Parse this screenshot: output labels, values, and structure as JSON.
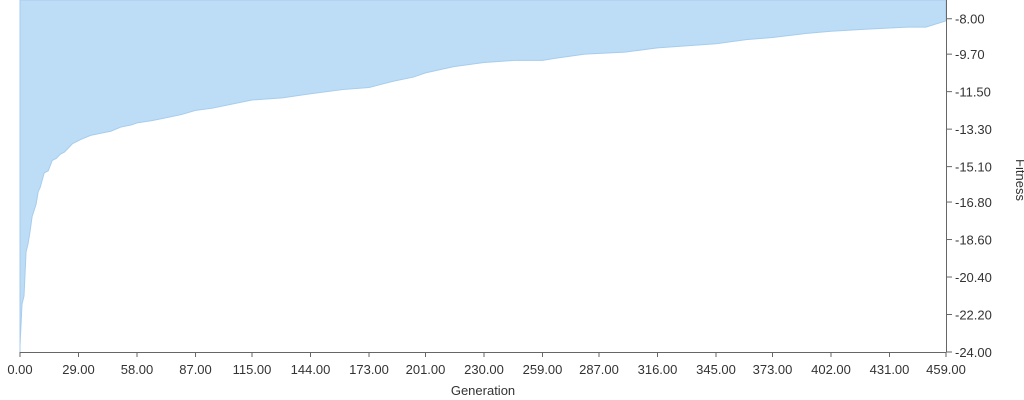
{
  "chart_data": {
    "type": "area",
    "xlabel": "Generation",
    "ylabel": "Fitness",
    "xlim": [
      0,
      459
    ],
    "ylim": [
      -24,
      -7.1
    ],
    "x_ticks": [
      "0.00",
      "29.00",
      "58.00",
      "87.00",
      "115.00",
      "144.00",
      "173.00",
      "201.00",
      "230.00",
      "259.00",
      "287.00",
      "316.00",
      "345.00",
      "373.00",
      "402.00",
      "431.00",
      "459.00"
    ],
    "y_ticks": [
      "-8.00",
      "-9.70",
      "-11.50",
      "-13.30",
      "-15.10",
      "-16.80",
      "-18.60",
      "-20.40",
      "-22.20",
      "-24.00"
    ],
    "y_axis_position": "right",
    "grid": false,
    "fill_color": "#bddcf5",
    "line_color": "#a6cdee",
    "series": [
      {
        "values_x": [
          0,
          1,
          2,
          3,
          4,
          5,
          6,
          7,
          8,
          9,
          10,
          12,
          14,
          16,
          18,
          20,
          22,
          24,
          26,
          28,
          30,
          35,
          40,
          45,
          50,
          55,
          58,
          65,
          70,
          75,
          80,
          87,
          95,
          105,
          115,
          130,
          144,
          160,
          173,
          185,
          195,
          201,
          215,
          230,
          245,
          259,
          265,
          280,
          300,
          316,
          330,
          345,
          360,
          373,
          390,
          402,
          420,
          440,
          449,
          459
        ],
        "values_y": [
          -23.7,
          -21.7,
          -21.3,
          -19.2,
          -18.8,
          -18.2,
          -17.5,
          -17.2,
          -16.9,
          -16.3,
          -16.1,
          -15.4,
          -15.3,
          -14.8,
          -14.7,
          -14.5,
          -14.4,
          -14.2,
          -14.0,
          -13.9,
          -13.8,
          -13.6,
          -13.5,
          -13.4,
          -13.2,
          -13.1,
          -13.0,
          -12.9,
          -12.8,
          -12.7,
          -12.6,
          -12.4,
          -12.3,
          -12.1,
          -11.9,
          -11.8,
          -11.6,
          -11.4,
          -11.3,
          -11.0,
          -10.8,
          -10.6,
          -10.3,
          -10.1,
          -10.0,
          -10.0,
          -9.9,
          -9.7,
          -9.6,
          -9.4,
          -9.3,
          -9.2,
          -9.0,
          -8.9,
          -8.7,
          -8.6,
          -8.5,
          -8.4,
          -8.4,
          -8.1
        ]
      }
    ]
  }
}
